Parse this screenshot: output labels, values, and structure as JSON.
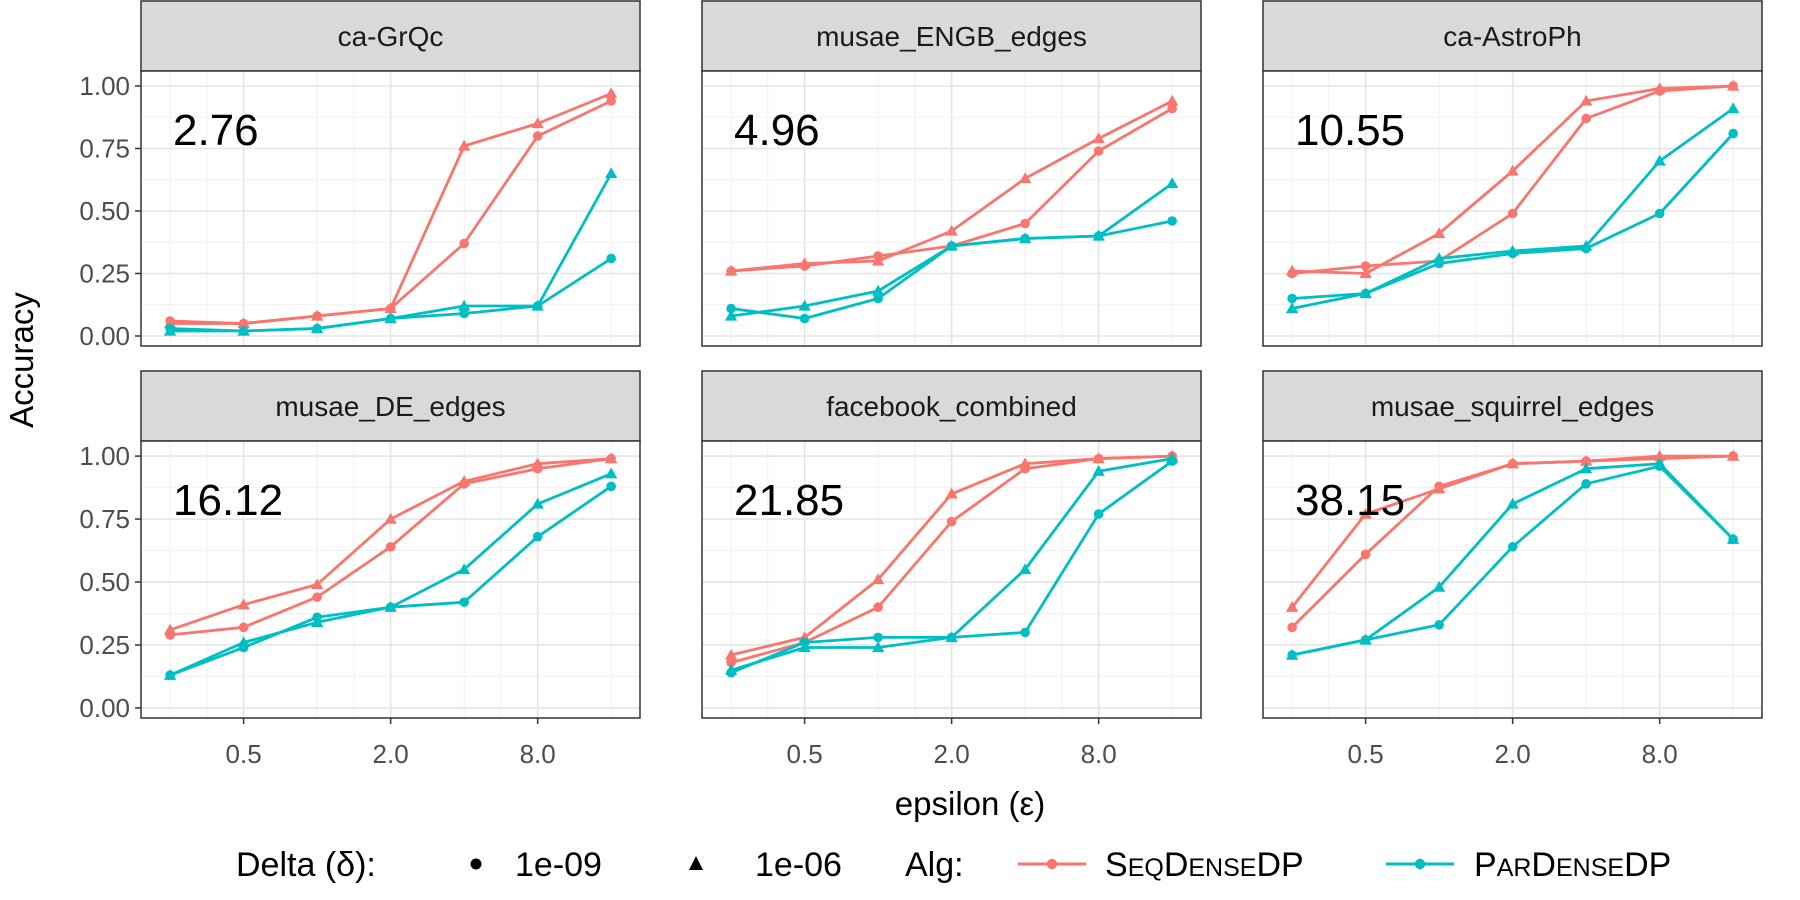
{
  "chart_data": {
    "type": "line",
    "layout": "facet-grid 2x3",
    "xlabel": "epsilon (ε)",
    "ylabel": "Accuracy",
    "x": [
      0.25,
      0.5,
      1.0,
      2.0,
      4.0,
      8.0,
      16.0
    ],
    "x_scale": "log2",
    "xlim": [
      0.19,
      21.0
    ],
    "x_ticks": [
      0.5,
      2.0,
      8.0
    ],
    "x_tick_labels": [
      "0.5",
      "2.0",
      "8.0"
    ],
    "ylim": [
      -0.04,
      1.06
    ],
    "y_ticks": [
      0.0,
      0.25,
      0.5,
      0.75,
      1.0
    ],
    "y_tick_labels": [
      "0.00",
      "0.25",
      "0.50",
      "0.75",
      "1.00"
    ],
    "colors": {
      "SeqDenseDP": "#f8766d",
      "ParDenseDP": "#00bfc4"
    },
    "legend": {
      "delta_title": "Delta (δ):",
      "delta_levels": [
        {
          "label": "1e-09",
          "shape": "circle"
        },
        {
          "label": "1e-06",
          "shape": "triangle"
        }
      ],
      "alg_title": "Alg:",
      "alg_levels": [
        {
          "key": "SeqDenseDP",
          "parts": [
            [
              "S",
              "big"
            ],
            [
              "EQ",
              "small"
            ],
            [
              "D",
              "big"
            ],
            [
              "ENSE",
              "small"
            ],
            [
              "DP",
              "big"
            ]
          ]
        },
        {
          "key": "ParDenseDP",
          "parts": [
            [
              "P",
              "big"
            ],
            [
              "AR",
              "small"
            ],
            [
              "D",
              "big"
            ],
            [
              "ENSE",
              "small"
            ],
            [
              "DP",
              "big"
            ]
          ]
        }
      ]
    },
    "panels": [
      {
        "title": "ca-GrQc",
        "annotation": "2.76",
        "series": [
          {
            "alg": "SeqDenseDP",
            "delta": "1e-09",
            "values": [
              0.06,
              0.05,
              0.08,
              0.11,
              0.37,
              0.8,
              0.94
            ]
          },
          {
            "alg": "SeqDenseDP",
            "delta": "1e-06",
            "values": [
              0.05,
              0.05,
              0.08,
              0.11,
              0.76,
              0.85,
              0.97
            ]
          },
          {
            "alg": "ParDenseDP",
            "delta": "1e-09",
            "values": [
              0.03,
              0.02,
              0.03,
              0.07,
              0.09,
              0.12,
              0.31
            ]
          },
          {
            "alg": "ParDenseDP",
            "delta": "1e-06",
            "values": [
              0.02,
              0.02,
              0.03,
              0.07,
              0.12,
              0.12,
              0.65
            ]
          }
        ]
      },
      {
        "title": "musae_ENGB_edges",
        "annotation": "4.96",
        "series": [
          {
            "alg": "SeqDenseDP",
            "delta": "1e-09",
            "values": [
              0.26,
              0.28,
              0.32,
              0.36,
              0.45,
              0.74,
              0.91
            ]
          },
          {
            "alg": "SeqDenseDP",
            "delta": "1e-06",
            "values": [
              0.26,
              0.29,
              0.3,
              0.42,
              0.63,
              0.79,
              0.94
            ]
          },
          {
            "alg": "ParDenseDP",
            "delta": "1e-09",
            "values": [
              0.11,
              0.07,
              0.15,
              0.36,
              0.39,
              0.4,
              0.46
            ]
          },
          {
            "alg": "ParDenseDP",
            "delta": "1e-06",
            "values": [
              0.08,
              0.12,
              0.18,
              0.36,
              0.39,
              0.4,
              0.61
            ]
          }
        ]
      },
      {
        "title": "ca-AstroPh",
        "annotation": "10.55",
        "series": [
          {
            "alg": "SeqDenseDP",
            "delta": "1e-09",
            "values": [
              0.25,
              0.28,
              0.3,
              0.49,
              0.87,
              0.98,
              1.0
            ]
          },
          {
            "alg": "SeqDenseDP",
            "delta": "1e-06",
            "values": [
              0.26,
              0.25,
              0.41,
              0.66,
              0.94,
              0.99,
              1.0
            ]
          },
          {
            "alg": "ParDenseDP",
            "delta": "1e-09",
            "values": [
              0.15,
              0.17,
              0.29,
              0.33,
              0.35,
              0.49,
              0.81
            ]
          },
          {
            "alg": "ParDenseDP",
            "delta": "1e-06",
            "values": [
              0.11,
              0.17,
              0.31,
              0.34,
              0.36,
              0.7,
              0.91
            ]
          }
        ]
      },
      {
        "title": "musae_DE_edges",
        "annotation": "16.12",
        "series": [
          {
            "alg": "SeqDenseDP",
            "delta": "1e-09",
            "values": [
              0.29,
              0.32,
              0.44,
              0.64,
              0.89,
              0.95,
              0.99
            ]
          },
          {
            "alg": "SeqDenseDP",
            "delta": "1e-06",
            "values": [
              0.31,
              0.41,
              0.49,
              0.75,
              0.9,
              0.97,
              0.99
            ]
          },
          {
            "alg": "ParDenseDP",
            "delta": "1e-09",
            "values": [
              0.13,
              0.24,
              0.36,
              0.4,
              0.42,
              0.68,
              0.88
            ]
          },
          {
            "alg": "ParDenseDP",
            "delta": "1e-06",
            "values": [
              0.13,
              0.26,
              0.34,
              0.4,
              0.55,
              0.81,
              0.93
            ]
          }
        ]
      },
      {
        "title": "facebook_combined",
        "annotation": "21.85",
        "series": [
          {
            "alg": "SeqDenseDP",
            "delta": "1e-09",
            "values": [
              0.18,
              0.26,
              0.4,
              0.74,
              0.95,
              0.99,
              1.0
            ]
          },
          {
            "alg": "SeqDenseDP",
            "delta": "1e-06",
            "values": [
              0.21,
              0.28,
              0.51,
              0.85,
              0.97,
              0.99,
              1.0
            ]
          },
          {
            "alg": "ParDenseDP",
            "delta": "1e-09",
            "values": [
              0.14,
              0.26,
              0.28,
              0.28,
              0.3,
              0.77,
              0.98
            ]
          },
          {
            "alg": "ParDenseDP",
            "delta": "1e-06",
            "values": [
              0.15,
              0.24,
              0.24,
              0.28,
              0.55,
              0.94,
              0.99
            ]
          }
        ]
      },
      {
        "title": "musae_squirrel_edges",
        "annotation": "38.15",
        "series": [
          {
            "alg": "SeqDenseDP",
            "delta": "1e-09",
            "values": [
              0.32,
              0.61,
              0.88,
              0.97,
              0.98,
              0.99,
              1.0
            ]
          },
          {
            "alg": "SeqDenseDP",
            "delta": "1e-06",
            "values": [
              0.4,
              0.77,
              0.87,
              0.97,
              0.98,
              1.0,
              1.0
            ]
          },
          {
            "alg": "ParDenseDP",
            "delta": "1e-09",
            "values": [
              0.21,
              0.27,
              0.33,
              0.64,
              0.89,
              0.96,
              0.67
            ]
          },
          {
            "alg": "ParDenseDP",
            "delta": "1e-06",
            "values": [
              0.21,
              0.27,
              0.48,
              0.81,
              0.95,
              0.97,
              0.67
            ]
          }
        ]
      }
    ]
  }
}
